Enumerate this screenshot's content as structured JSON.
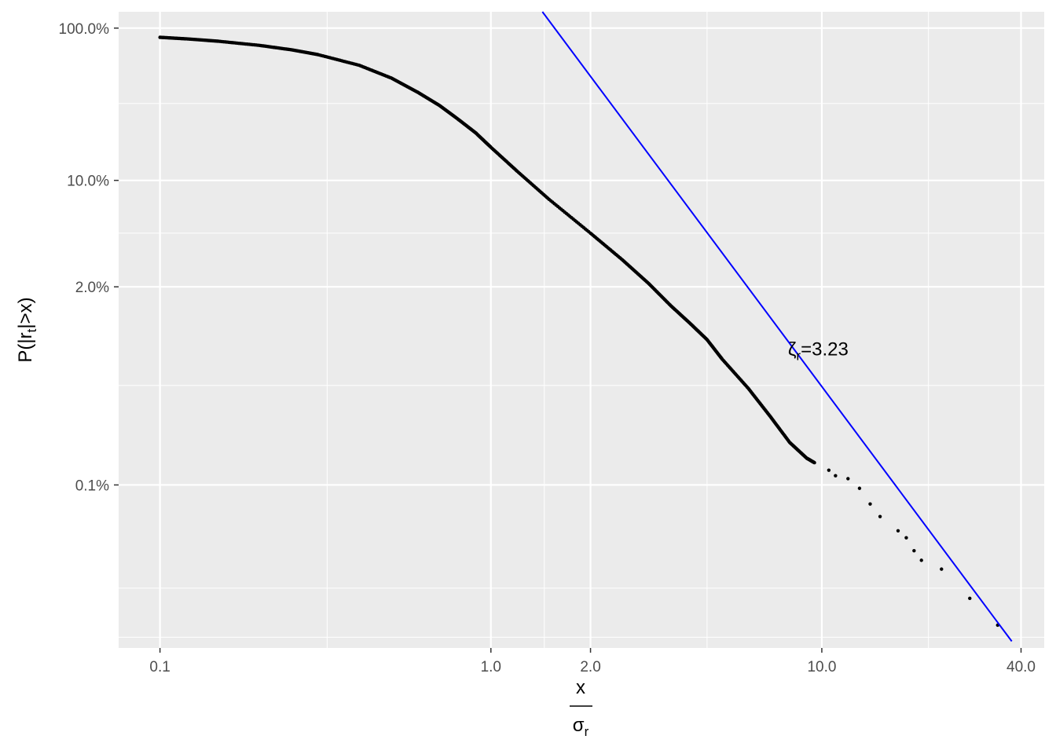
{
  "colors": {
    "panel_background": "#ebebeb",
    "grid": "#ffffff",
    "data_points": "#000000",
    "fit_line": "#0000ff",
    "tick_text": "#4d4d4d"
  },
  "chart_data": {
    "type": "scatter",
    "title": "",
    "x_scale": "log",
    "y_scale": "log",
    "xlim": [
      0.075,
      47
    ],
    "ylim": [
      8.5e-05,
      1.28
    ],
    "grid": true,
    "legend": "none",
    "xlabel": {
      "numerator": "x",
      "denominator_base": "σ",
      "denominator_sub": "r"
    },
    "ylabel": {
      "prefix": "P(|r",
      "sub": "t",
      "suffix": "|>x)"
    },
    "x_ticks": [
      {
        "value": 0.1,
        "label": "0.1"
      },
      {
        "value": 1.0,
        "label": "1.0"
      },
      {
        "value": 2.0,
        "label": "2.0"
      },
      {
        "value": 10.0,
        "label": "10.0"
      },
      {
        "value": 40.0,
        "label": "40.0"
      }
    ],
    "x_minor_gridlines": [
      0.32,
      1.45,
      4.5,
      21
    ],
    "y_ticks": [
      {
        "value": 1.0,
        "label": "100.0%"
      },
      {
        "value": 0.1,
        "label": "10.0%"
      },
      {
        "value": 0.02,
        "label": "2.0%"
      },
      {
        "value": 0.001,
        "label": "0.1%"
      }
    ],
    "y_minor_gridlines": [
      0.32,
      0.045,
      0.0045,
      0.00021,
      0.0001
    ],
    "series": [
      {
        "x": [
          0.1,
          0.12,
          0.15,
          0.2,
          0.25,
          0.3,
          0.4,
          0.5,
          0.6,
          0.7,
          0.8,
          0.9,
          1.0,
          1.2,
          1.5,
          2.0,
          2.5,
          3.0,
          3.5,
          4.0,
          4.5,
          5.0,
          6.0,
          7.0,
          8.0,
          9.0,
          9.5,
          10.5,
          11.0,
          12.0,
          13.0,
          14.0,
          15.0,
          17.0,
          18.0,
          19.0,
          20.0,
          23.0,
          28.0,
          34.0
        ],
        "y": [
          0.87,
          0.85,
          0.82,
          0.77,
          0.72,
          0.67,
          0.57,
          0.47,
          0.38,
          0.31,
          0.25,
          0.205,
          0.165,
          0.115,
          0.075,
          0.045,
          0.03,
          0.021,
          0.015,
          0.0115,
          0.009,
          0.0067,
          0.0043,
          0.0028,
          0.0019,
          0.0015,
          0.0014,
          0.00125,
          0.00115,
          0.0011,
          0.00095,
          0.00075,
          0.00062,
          0.0005,
          0.00045,
          0.00037,
          0.00032,
          0.00028,
          0.00018,
          0.00012
        ]
      }
    ],
    "fit_line": {
      "x": [
        1.34,
        37.5
      ],
      "y": [
        1.55,
        9.4e-05
      ]
    },
    "annotation": {
      "symbol": "ζ",
      "sub": "r",
      "text": "=3.23",
      "x": 7.9,
      "y": 0.0071
    }
  }
}
